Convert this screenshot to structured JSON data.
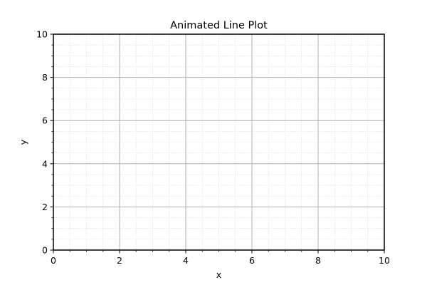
{
  "chart_data": {
    "type": "line",
    "title": "Animated Line Plot",
    "xlabel": "x",
    "ylabel": "y",
    "xlim": [
      0,
      10
    ],
    "ylim": [
      0,
      10
    ],
    "xticks": [
      "0",
      "2",
      "4",
      "6",
      "8",
      "10"
    ],
    "yticks": [
      "0",
      "2",
      "4",
      "6",
      "8",
      "10"
    ],
    "minor_tick_step": 0.5,
    "grid": {
      "major": true,
      "minor": true
    },
    "series": [
      {
        "x": [],
        "y": []
      }
    ]
  },
  "colors": {
    "major_grid": "#b0b0b0",
    "minor_grid": "#d9d9d9",
    "axes": "#000000"
  }
}
